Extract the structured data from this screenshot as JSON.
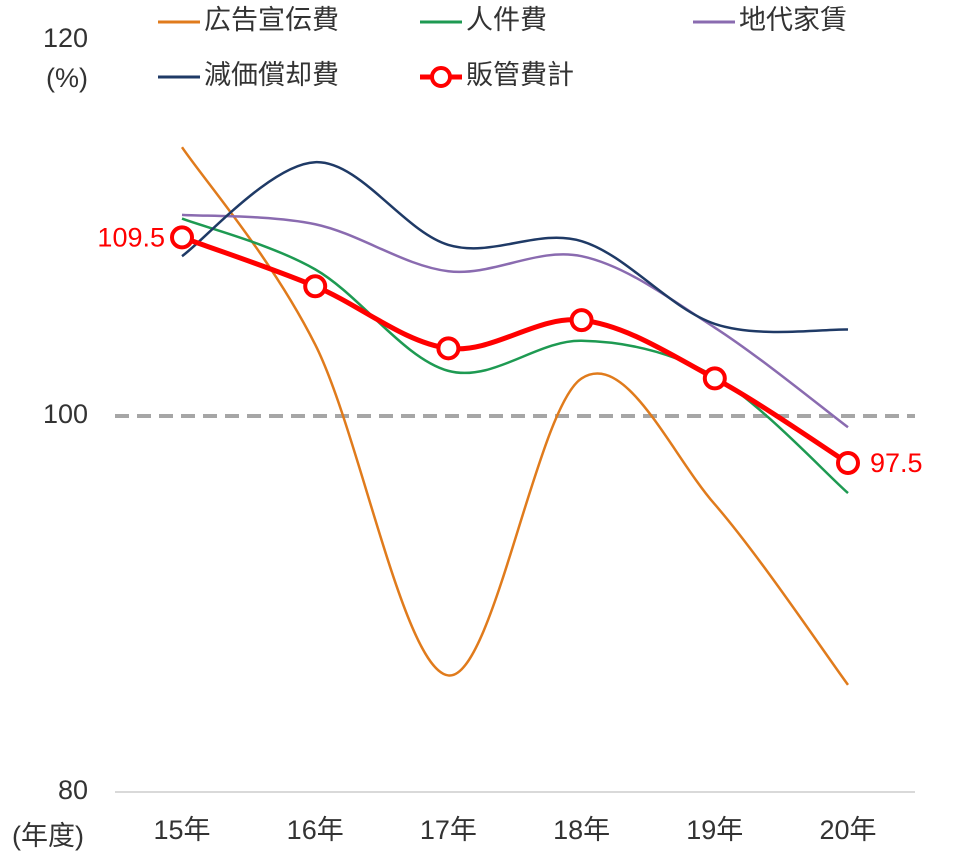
{
  "chart_data": {
    "type": "line",
    "y_axis_label": "(%)",
    "x_axis_label": "(年度)",
    "categories": [
      "15年",
      "16年",
      "17年",
      "18年",
      "19年",
      "20年"
    ],
    "series": [
      {
        "name": "広告宣伝費",
        "color": "#e07b1c",
        "values": [
          114.3,
          103.8,
          86.2,
          102.0,
          95.3,
          85.7
        ]
      },
      {
        "name": "人件費",
        "color": "#1e9a52",
        "values": [
          110.5,
          107.8,
          102.4,
          104.0,
          102.1,
          95.9
        ]
      },
      {
        "name": "地代家賃",
        "color": "#8a6bb0",
        "values": [
          110.7,
          110.2,
          107.7,
          108.5,
          104.7,
          99.4
        ]
      },
      {
        "name": "減価償却費",
        "color": "#1f3a66",
        "values": [
          108.5,
          113.5,
          109.1,
          109.3,
          104.9,
          104.6
        ]
      },
      {
        "name": "販管費計",
        "color": "#ff0000",
        "markers": true,
        "values": [
          109.5,
          106.9,
          103.6,
          105.1,
          102.0,
          97.5
        ],
        "value_labels": [
          "109.5",
          null,
          null,
          null,
          null,
          "97.5"
        ]
      }
    ],
    "ylim": [
      80,
      120
    ],
    "yticks": [
      80,
      100,
      120
    ],
    "reference_line": {
      "value": 100,
      "color": "#a6a6a6",
      "dashed": true
    },
    "smooth": true
  }
}
